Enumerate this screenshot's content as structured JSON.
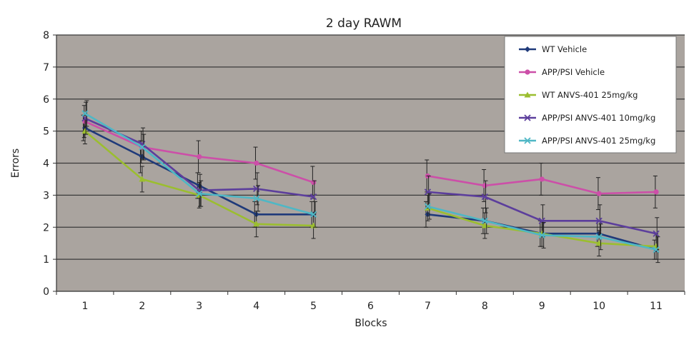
{
  "chart_data": {
    "type": "line",
    "title": "2 day RAWM",
    "xlabel": "Blocks",
    "ylabel": "Errors",
    "ylim": [
      0,
      8
    ],
    "yticks": [
      0,
      1,
      2,
      3,
      4,
      5,
      6,
      7,
      8
    ],
    "categories": [
      "1",
      "2",
      "3",
      "4",
      "5",
      "6",
      "7",
      "8",
      "9",
      "10",
      "11"
    ],
    "grid": true,
    "legend_position": "top-right",
    "plot_background": "#aaa49f",
    "series": [
      {
        "name": "WT Vehicle",
        "color": "#1f3a7a",
        "marker": "diamond",
        "values": [
          5.1,
          4.2,
          3.3,
          2.4,
          2.4,
          null,
          2.4,
          2.2,
          1.8,
          1.8,
          1.3
        ],
        "errors": [
          0.4,
          0.5,
          0.4,
          0.4,
          0.4,
          null,
          0.4,
          0.4,
          0.4,
          0.4,
          0.3
        ]
      },
      {
        "name": "APP/PSI Vehicle",
        "color": "#cc4fa8",
        "marker": "circle",
        "values": [
          5.3,
          4.5,
          4.2,
          4.0,
          3.4,
          null,
          3.6,
          3.3,
          3.5,
          3.05,
          3.1
        ],
        "errors": [
          0.5,
          0.5,
          0.5,
          0.5,
          0.5,
          null,
          0.5,
          0.5,
          0.5,
          0.5,
          0.5
        ]
      },
      {
        "name": "WT ANVS-401 25mg/kg",
        "color": "#9bbe2f",
        "marker": "triangle",
        "values": [
          5.0,
          3.5,
          3.0,
          2.1,
          2.05,
          null,
          2.6,
          2.05,
          1.8,
          1.5,
          1.4
        ],
        "errors": [
          0.4,
          0.4,
          0.4,
          0.4,
          0.4,
          null,
          0.4,
          0.4,
          0.4,
          0.4,
          0.4
        ]
      },
      {
        "name": "APP/PSI ANVS-401 10mg/kg",
        "color": "#5c3e9c",
        "marker": "cross",
        "values": [
          5.4,
          4.6,
          3.15,
          3.2,
          2.95,
          null,
          3.1,
          2.95,
          2.2,
          2.2,
          1.8
        ],
        "errors": [
          0.5,
          0.5,
          0.5,
          0.5,
          0.5,
          null,
          0.5,
          0.5,
          0.5,
          0.5,
          0.5
        ]
      },
      {
        "name": "APP/PSI ANVS-401 25mg/kg",
        "color": "#4fb7c5",
        "marker": "cross",
        "values": [
          5.55,
          4.5,
          3.05,
          2.9,
          2.4,
          null,
          2.65,
          2.2,
          1.75,
          1.7,
          1.3
        ],
        "errors": [
          0.4,
          0.4,
          0.4,
          0.4,
          0.4,
          null,
          0.4,
          0.4,
          0.4,
          0.4,
          0.4
        ]
      }
    ]
  }
}
